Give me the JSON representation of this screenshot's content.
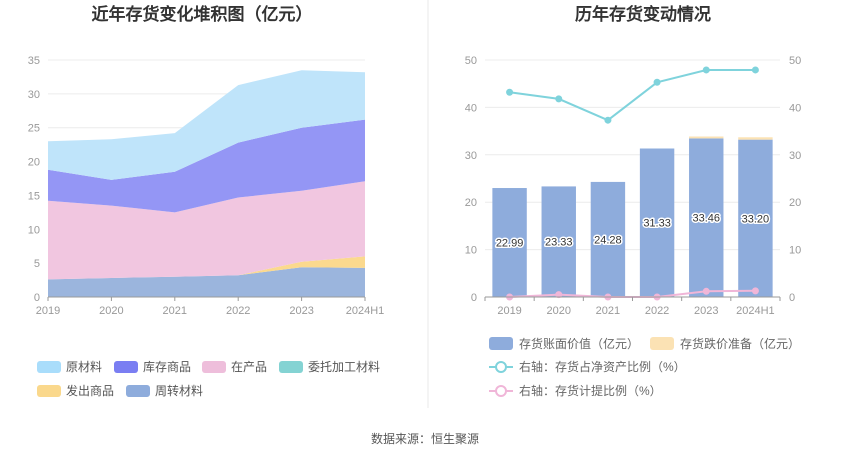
{
  "source": "数据来源：恒生聚源",
  "chart_data": [
    {
      "type": "area",
      "title": "近年存货变化堆积图（亿元）",
      "categories": [
        "2019",
        "2020",
        "2021",
        "2022",
        "2023",
        "2024H1"
      ],
      "ylim": [
        0,
        35
      ],
      "yticks": [
        "0",
        "5",
        "10",
        "15",
        "20",
        "25",
        "30",
        "35"
      ],
      "grid": true,
      "series": [
        {
          "name": "周转材料",
          "color": "#9bb5dd",
          "values": [
            2.6,
            2.8,
            3.0,
            3.2,
            4.4,
            4.3
          ]
        },
        {
          "name": "发出商品",
          "color": "#fbd98e",
          "values": [
            0.0,
            0.0,
            0.0,
            0.0,
            0.8,
            1.7
          ]
        },
        {
          "name": "委托加工材料",
          "color": "#8dd7d7",
          "values": [
            0.0,
            0.0,
            0.0,
            0.0,
            0.0,
            0.0
          ]
        },
        {
          "name": "在产品",
          "color": "#f1c6e0",
          "values": [
            11.6,
            10.7,
            9.5,
            11.5,
            10.5,
            11.1
          ]
        },
        {
          "name": "库存商品",
          "color": "#9496f5",
          "values": [
            4.6,
            3.8,
            6.0,
            8.1,
            9.3,
            9.1
          ]
        },
        {
          "name": "原材料",
          "color": "#bfe4fa",
          "values": [
            4.2,
            6.0,
            5.7,
            8.5,
            8.5,
            7.0
          ]
        }
      ],
      "legend": [
        {
          "name": "原材料",
          "color": "#a9ddfb"
        },
        {
          "name": "库存商品",
          "color": "#7a7ef2"
        },
        {
          "name": "在产品",
          "color": "#eebedb"
        },
        {
          "name": "委托加工材料",
          "color": "#84d3d3"
        },
        {
          "name": "发出商品",
          "color": "#fad88c"
        },
        {
          "name": "周转材料",
          "color": "#8eacdc"
        }
      ]
    },
    {
      "type": "bar",
      "title": "历年存货变动情况",
      "categories": [
        "2019",
        "2020",
        "2021",
        "2022",
        "2023",
        "2024H1"
      ],
      "ylim": [
        0,
        50
      ],
      "y2lim": [
        0,
        50
      ],
      "yticks": [
        "0",
        "10",
        "20",
        "30",
        "40",
        "50"
      ],
      "grid": true,
      "series": [
        {
          "name": "存货账面价值（亿元）",
          "kind": "bar",
          "color": "#8eacdc",
          "values": [
            22.99,
            23.33,
            24.28,
            31.33,
            33.46,
            33.2
          ],
          "labels": [
            "22.99",
            "23.33",
            "24.28",
            "31.33",
            "33.46",
            "33.20"
          ]
        },
        {
          "name": "存货跌价准备（亿元）",
          "kind": "bar-stack",
          "color": "#fbe2b4",
          "values": [
            0.0,
            0.0,
            0.0,
            0.0,
            0.4,
            0.5
          ]
        },
        {
          "name": "右轴：存货占净资产比例（%）",
          "kind": "line",
          "axis": "right",
          "color": "#7fd3dc",
          "values": [
            43.2,
            41.8,
            37.3,
            45.3,
            47.9,
            47.9
          ]
        },
        {
          "name": "右轴：存货计提比例（%）",
          "kind": "line",
          "axis": "right",
          "color": "#f0b6d8",
          "values": [
            0.0,
            0.5,
            0.0,
            0.0,
            1.2,
            1.3
          ]
        }
      ]
    }
  ]
}
